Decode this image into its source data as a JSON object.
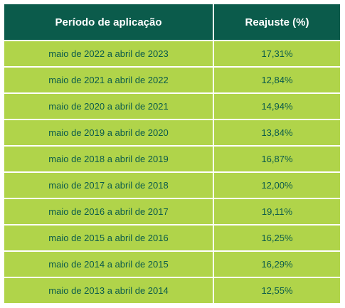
{
  "table": {
    "headers": [
      "Período de aplicação",
      "Reajuste (%)"
    ],
    "rows": [
      [
        "maio de 2022 a abril de 2023",
        "17,31%"
      ],
      [
        "maio de 2021 a abril de 2022",
        "12,84%"
      ],
      [
        "maio de 2020 a abril de 2021",
        "14,94%"
      ],
      [
        "maio de 2019 a abril de 2020",
        "13,84%"
      ],
      [
        "maio de 2018 a abril de 2019",
        "16,87%"
      ],
      [
        "maio de 2017 a abril de 2018",
        "12,00%"
      ],
      [
        "maio de 2016 a abril de 2017",
        "19,11%"
      ],
      [
        "maio de 2015 a abril de 2016",
        "16,25%"
      ],
      [
        "maio de 2014 a abril de 2015",
        "16,29%"
      ],
      [
        "maio de 2013 a abril de 2014",
        "12,55%"
      ]
    ]
  },
  "colors": {
    "header_bg": "#0b5b4b",
    "row_bg": "#b0d44a",
    "text_dark": "#0b5b4b"
  }
}
